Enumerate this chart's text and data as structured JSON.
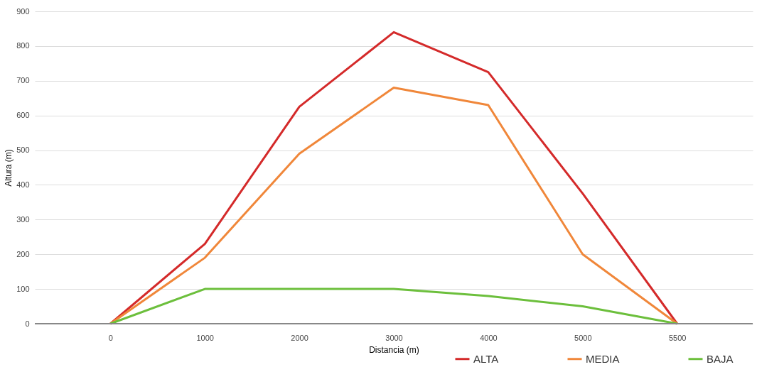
{
  "chart_data": {
    "type": "line",
    "xlabel": "Distancia (m)",
    "ylabel": "Altura (m)",
    "categories": [
      "0",
      "1000",
      "2000",
      "3000",
      "4000",
      "5000",
      "5500"
    ],
    "series": [
      {
        "name": "ALTA",
        "color": "#d42a2a",
        "values": [
          0,
          230,
          625,
          840,
          725,
          375,
          0
        ]
      },
      {
        "name": "MEDIA",
        "color": "#f0873a",
        "values": [
          0,
          190,
          490,
          680,
          630,
          200,
          0
        ]
      },
      {
        "name": "BAJA",
        "color": "#6cbf3c",
        "values": [
          0,
          100,
          100,
          100,
          80,
          50,
          0
        ]
      }
    ],
    "ylim": [
      0,
      900
    ],
    "yticks": [
      0,
      100,
      200,
      300,
      400,
      500,
      600,
      700,
      800,
      900
    ],
    "grid": "y",
    "legend": "bottom right",
    "marker": "none",
    "line_style": "solid"
  }
}
